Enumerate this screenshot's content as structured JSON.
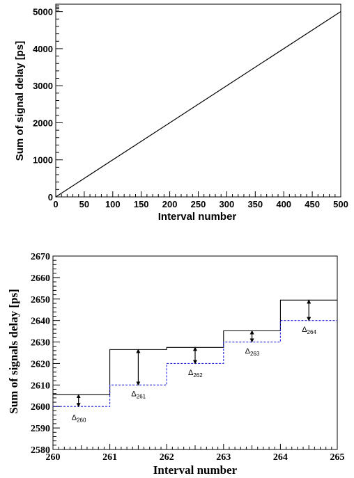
{
  "chart_data": [
    {
      "type": "line",
      "title": "",
      "xlabel": "Interval number",
      "ylabel": "Sum of signal delay [ps]",
      "xlim": [
        0,
        500
      ],
      "ylim": [
        0,
        5200
      ],
      "xticks": [
        0,
        50,
        100,
        150,
        200,
        250,
        300,
        350,
        400,
        450,
        500
      ],
      "xtick_labels": [
        "0",
        "50",
        "100",
        "150",
        "200",
        "250",
        "300",
        "350",
        "400",
        "450",
        "500"
      ],
      "yticks": [
        0,
        1000,
        2000,
        3000,
        4000,
        5000
      ],
      "ytick_labels": [
        "0",
        "1000",
        "2000",
        "3000",
        "4000",
        "5000"
      ],
      "series": [
        {
          "color": "#000000",
          "x": [
            0,
            500
          ],
          "y": [
            0,
            5000
          ]
        }
      ],
      "grid": false
    },
    {
      "type": "line",
      "title": "",
      "xlabel": "Interval number",
      "ylabel": "Sum of signals delay [ps]",
      "xlim": [
        260,
        265
      ],
      "ylim": [
        2580,
        2670
      ],
      "xticks": [
        260,
        261,
        262,
        263,
        264,
        265
      ],
      "xtick_labels": [
        "260",
        "261",
        "262",
        "263",
        "264",
        "265"
      ],
      "yticks": [
        2580,
        2590,
        2600,
        2610,
        2620,
        2630,
        2640,
        2650,
        2660,
        2670
      ],
      "ytick_labels": [
        "2580",
        "2590",
        "2600",
        "2610",
        "2620",
        "2630",
        "2640",
        "2650",
        "2660",
        "2670"
      ],
      "series": [
        {
          "style": "solid",
          "color": "#000000",
          "step_edges": [
            260,
            261,
            262,
            263,
            264,
            265
          ],
          "values": [
            2605.5,
            2626.5,
            2627.5,
            2635.2,
            2649.5
          ]
        },
        {
          "style": "dashed",
          "color": "#2222dd",
          "step_edges": [
            260,
            261,
            262,
            263,
            264,
            265
          ],
          "values": [
            2600,
            2610,
            2620,
            2630,
            2640
          ]
        }
      ],
      "annotations": [
        {
          "symbol": "Δ",
          "subscript": "260",
          "x": 260.45,
          "y_from": 2600,
          "y_to": 2605.5,
          "label_y": 2595
        },
        {
          "symbol": "Δ",
          "subscript": "261",
          "x": 261.5,
          "y_from": 2610,
          "y_to": 2626.5,
          "label_y": 2606
        },
        {
          "symbol": "Δ",
          "subscript": "262",
          "x": 262.5,
          "y_from": 2620,
          "y_to": 2627.5,
          "label_y": 2616
        },
        {
          "symbol": "Δ",
          "subscript": "263",
          "x": 263.5,
          "y_from": 2630,
          "y_to": 2635.2,
          "label_y": 2626
        },
        {
          "symbol": "Δ",
          "subscript": "264",
          "x": 264.5,
          "y_from": 2640,
          "y_to": 2649.5,
          "label_y": 2636
        }
      ],
      "grid": false
    }
  ]
}
